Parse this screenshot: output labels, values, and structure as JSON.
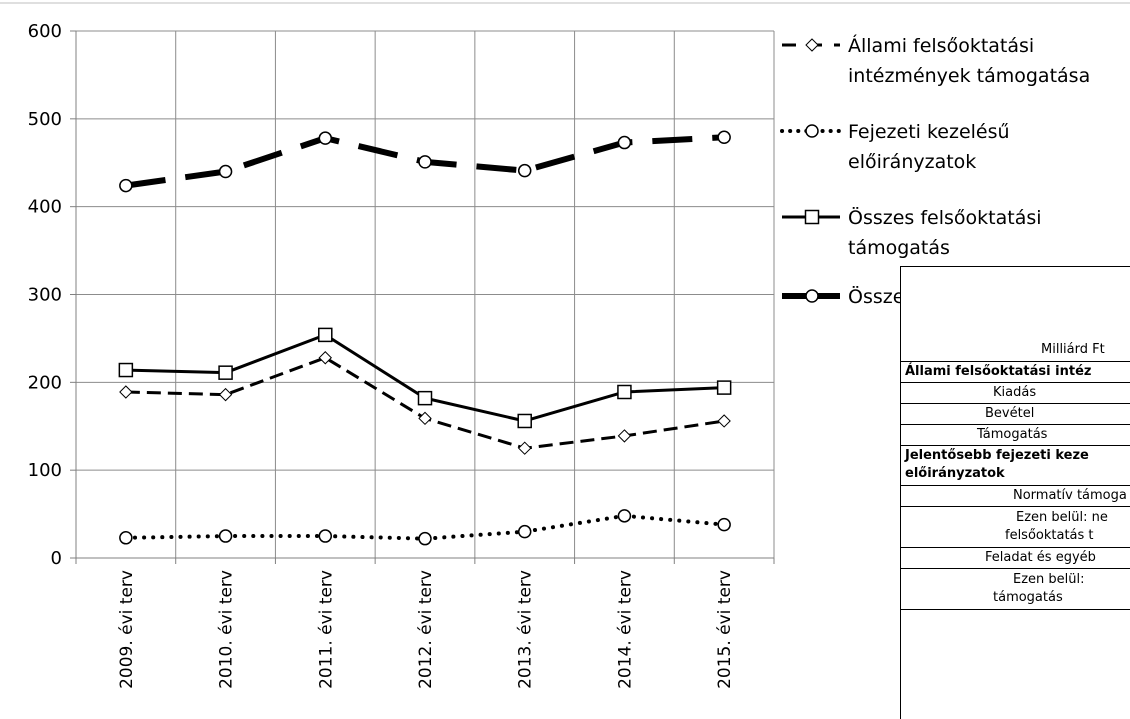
{
  "chart_data": {
    "type": "line",
    "categories": [
      "2009. évi terv",
      "2010. évi terv",
      "2011. évi terv",
      "2012. évi terv",
      "2013. évi terv",
      "2014. évi terv",
      "2015. évi terv"
    ],
    "ylim": [
      0,
      600
    ],
    "yticks": [
      0,
      100,
      200,
      300,
      400,
      500,
      600
    ],
    "grid": true,
    "legend_position": "right",
    "series": [
      {
        "name": "Állami felsőoktatási intézmények támogatása",
        "legend_lines": [
          "Állami felsőoktatási",
          "intézmények támogatása"
        ],
        "style": "dashed",
        "marker": "diamond",
        "values": [
          189,
          186,
          228,
          159,
          125,
          139,
          156
        ]
      },
      {
        "name": "Fejezeti kezelésű előirányzatok",
        "legend_lines": [
          "Fejezeti kezelésű",
          "előirányzatok"
        ],
        "style": "dotted",
        "marker": "circle",
        "values": [
          23,
          25,
          25,
          22,
          30,
          48,
          38
        ]
      },
      {
        "name": "Összes felsőoktatási támogatás",
        "legend_lines": [
          "Összes felsőoktatási",
          "támogatás"
        ],
        "style": "solid",
        "marker": "square",
        "values": [
          214,
          211,
          254,
          182,
          156,
          189,
          194
        ]
      },
      {
        "name": "Összes felsőoktatási kiadás",
        "legend_lines": [
          "Összes felsőoktatási kiadás"
        ],
        "style": "dash-thick",
        "marker": "circle",
        "values": [
          424,
          440,
          478,
          451,
          441,
          473,
          479
        ]
      }
    ]
  },
  "table": {
    "unit": "Milliárd Ft",
    "rows": [
      "Állami felsőoktatási intéz",
      "Kiadás",
      "Bevétel",
      "Támogatás",
      "Jelentősebb fejezeti keze",
      "előirányzatok",
      "Normatív támoga",
      "Ezen belül: ne",
      "felsőoktatás t",
      "Feladat és egyéb",
      "Ezen belül:",
      "támogatás"
    ]
  }
}
